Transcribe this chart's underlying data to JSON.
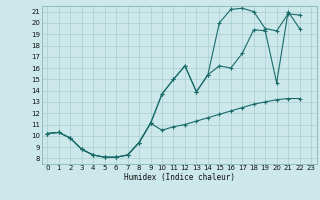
{
  "title": "",
  "xlabel": "Humidex (Indice chaleur)",
  "bg_color": "#cce8ea",
  "grid_color": "#aacdd0",
  "line_color": "#1a6b6b",
  "xlim": [
    -0.5,
    23.5
  ],
  "ylim": [
    7.5,
    21.5
  ],
  "xticks": [
    0,
    1,
    2,
    3,
    4,
    5,
    6,
    7,
    8,
    9,
    10,
    11,
    12,
    13,
    14,
    15,
    16,
    17,
    18,
    19,
    20,
    21,
    22,
    23
  ],
  "yticks": [
    8,
    9,
    10,
    11,
    12,
    13,
    14,
    15,
    16,
    17,
    18,
    19,
    20,
    21
  ],
  "line1_x": [
    0,
    1,
    2,
    3,
    4,
    5,
    6,
    7,
    8,
    9,
    10,
    11,
    12,
    13,
    14,
    15,
    16,
    17,
    18,
    19,
    20,
    21,
    22
  ],
  "line1_y": [
    10.2,
    10.3,
    9.8,
    8.8,
    8.3,
    8.1,
    8.1,
    8.3,
    9.4,
    11.1,
    13.7,
    15.0,
    16.2,
    13.9,
    15.4,
    20.0,
    21.2,
    21.3,
    21.0,
    19.5,
    19.3,
    20.8,
    20.7
  ],
  "line2_x": [
    0,
    1,
    2,
    3,
    4,
    5,
    6,
    7,
    8,
    9,
    10,
    11,
    12,
    13,
    14,
    15,
    16,
    17,
    18,
    19,
    20,
    21,
    22
  ],
  "line2_y": [
    10.2,
    10.3,
    9.8,
    8.8,
    8.3,
    8.1,
    8.1,
    8.3,
    9.4,
    11.1,
    13.7,
    15.0,
    16.2,
    13.9,
    15.4,
    16.2,
    16.0,
    17.3,
    19.4,
    19.3,
    14.7,
    21.0,
    19.5
  ],
  "line3_x": [
    0,
    1,
    2,
    3,
    4,
    5,
    6,
    7,
    8,
    9,
    10,
    11,
    12,
    13,
    14,
    15,
    16,
    17,
    18,
    19,
    20,
    21,
    22
  ],
  "line3_y": [
    10.2,
    10.3,
    9.8,
    8.8,
    8.3,
    8.1,
    8.1,
    8.3,
    9.4,
    11.1,
    10.5,
    10.8,
    11.0,
    11.3,
    11.6,
    11.9,
    12.2,
    12.5,
    12.8,
    13.0,
    13.2,
    13.3,
    13.3
  ]
}
